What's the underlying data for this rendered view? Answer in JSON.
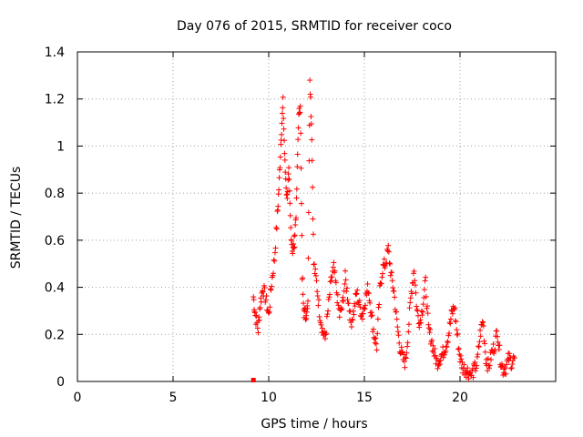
{
  "chart_data": {
    "type": "scatter",
    "title": "Day 076 of 2015, SRMTID for receiver coco",
    "xlabel": "GPS time / hours",
    "ylabel": "SRMTID / TECUs",
    "xlim": [
      0,
      25
    ],
    "ylim": [
      0,
      1.4
    ],
    "xticks": [
      0,
      5,
      10,
      15,
      20
    ],
    "xtick_labels": [
      "0",
      "5",
      "10",
      "15",
      "20"
    ],
    "yticks": [
      0,
      0.2,
      0.4,
      0.6,
      0.8,
      1.0,
      1.2,
      1.4
    ],
    "ytick_labels": [
      "0",
      "0.2",
      "0.4",
      "0.6",
      "0.8",
      "1",
      "1.2",
      "1.4"
    ],
    "grid": true,
    "marker": "+",
    "color": "#ff0000",
    "series": [
      {
        "name": "SRMTID",
        "x": [
          9.2,
          9.3,
          9.45,
          9.55,
          9.7,
          9.85,
          10.0,
          10.15,
          10.3,
          10.45,
          10.55,
          10.65,
          10.75,
          10.85,
          10.95,
          11.05,
          11.15,
          11.25,
          11.35,
          11.45,
          11.55,
          11.65,
          11.75,
          11.85,
          11.95,
          12.05,
          12.15,
          12.25,
          12.35,
          12.5,
          12.65,
          12.8,
          12.95,
          13.1,
          13.25,
          13.4,
          13.55,
          13.7,
          13.85,
          14.0,
          14.15,
          14.3,
          14.45,
          14.6,
          14.75,
          14.9,
          15.05,
          15.2,
          15.35,
          15.5,
          15.65,
          15.8,
          15.95,
          16.1,
          16.25,
          16.4,
          16.55,
          16.7,
          16.85,
          17.0,
          17.15,
          17.3,
          17.45,
          17.6,
          17.75,
          17.9,
          18.05,
          18.2,
          18.35,
          18.5,
          18.65,
          18.8,
          18.95,
          19.1,
          19.25,
          19.4,
          19.55,
          19.7,
          19.85,
          20.0,
          20.15,
          20.3,
          20.45,
          20.6,
          20.75,
          20.9,
          21.05,
          21.2,
          21.35,
          21.5,
          21.65,
          21.8,
          21.95,
          22.1,
          22.25,
          22.4,
          22.55,
          22.7,
          22.85
        ],
        "y": [
          0.36,
          0.28,
          0.22,
          0.33,
          0.4,
          0.35,
          0.28,
          0.42,
          0.52,
          0.7,
          0.85,
          1.05,
          1.18,
          0.92,
          0.78,
          0.88,
          0.65,
          0.55,
          0.6,
          0.75,
          1.1,
          1.19,
          0.45,
          0.3,
          0.28,
          0.35,
          1.3,
          1.05,
          0.5,
          0.42,
          0.3,
          0.22,
          0.18,
          0.3,
          0.42,
          0.48,
          0.38,
          0.28,
          0.32,
          0.44,
          0.35,
          0.25,
          0.3,
          0.38,
          0.32,
          0.28,
          0.35,
          0.4,
          0.3,
          0.2,
          0.15,
          0.38,
          0.48,
          0.5,
          0.56,
          0.45,
          0.38,
          0.25,
          0.15,
          0.1,
          0.08,
          0.22,
          0.38,
          0.48,
          0.3,
          0.25,
          0.32,
          0.42,
          0.22,
          0.18,
          0.12,
          0.08,
          0.1,
          0.12,
          0.15,
          0.2,
          0.28,
          0.32,
          0.2,
          0.1,
          0.06,
          0.05,
          0.04,
          0.03,
          0.05,
          0.08,
          0.2,
          0.26,
          0.1,
          0.06,
          0.12,
          0.15,
          0.22,
          0.1,
          0.05,
          0.06,
          0.1,
          0.08,
          0.1
        ]
      }
    ],
    "outlier": {
      "x": 9.2,
      "y": 0.0
    }
  }
}
